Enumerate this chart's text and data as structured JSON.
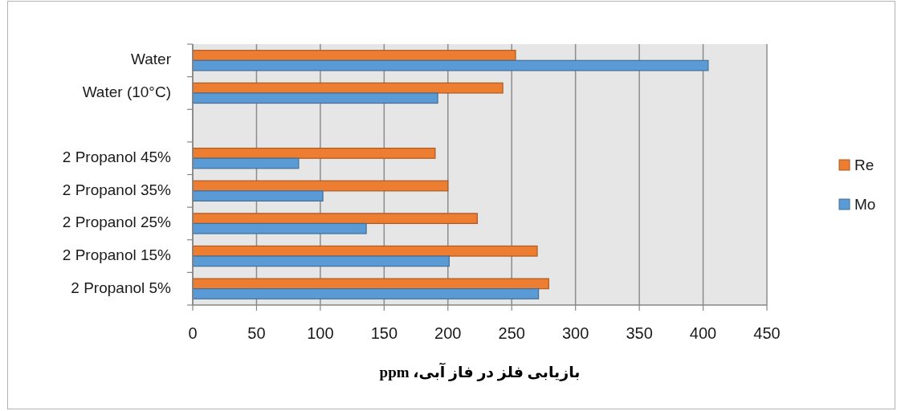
{
  "chart_data": {
    "type": "bar",
    "orientation": "horizontal",
    "xlabel": "بازیابی فلز در فاز آبی، ppm",
    "categories": [
      "Water",
      "Water (10°C)",
      null,
      "2 Propanol 45%",
      "2 Propanol 35%",
      "2 Propanol 25%",
      "2 Propanol 15%",
      "2 Propanol 5%"
    ],
    "series": [
      {
        "name": "Re",
        "color": "#ed7d31",
        "values": [
          253,
          243,
          null,
          190,
          200,
          223,
          270,
          279
        ]
      },
      {
        "name": "Mo",
        "color": "#5b9bd5",
        "values": [
          404,
          192,
          null,
          83,
          102,
          136,
          201,
          271
        ]
      }
    ],
    "xlim": [
      0,
      450
    ],
    "xticks": [
      0,
      50,
      100,
      150,
      200,
      250,
      300,
      350,
      400,
      450
    ],
    "grid": "x",
    "legend": "right"
  }
}
